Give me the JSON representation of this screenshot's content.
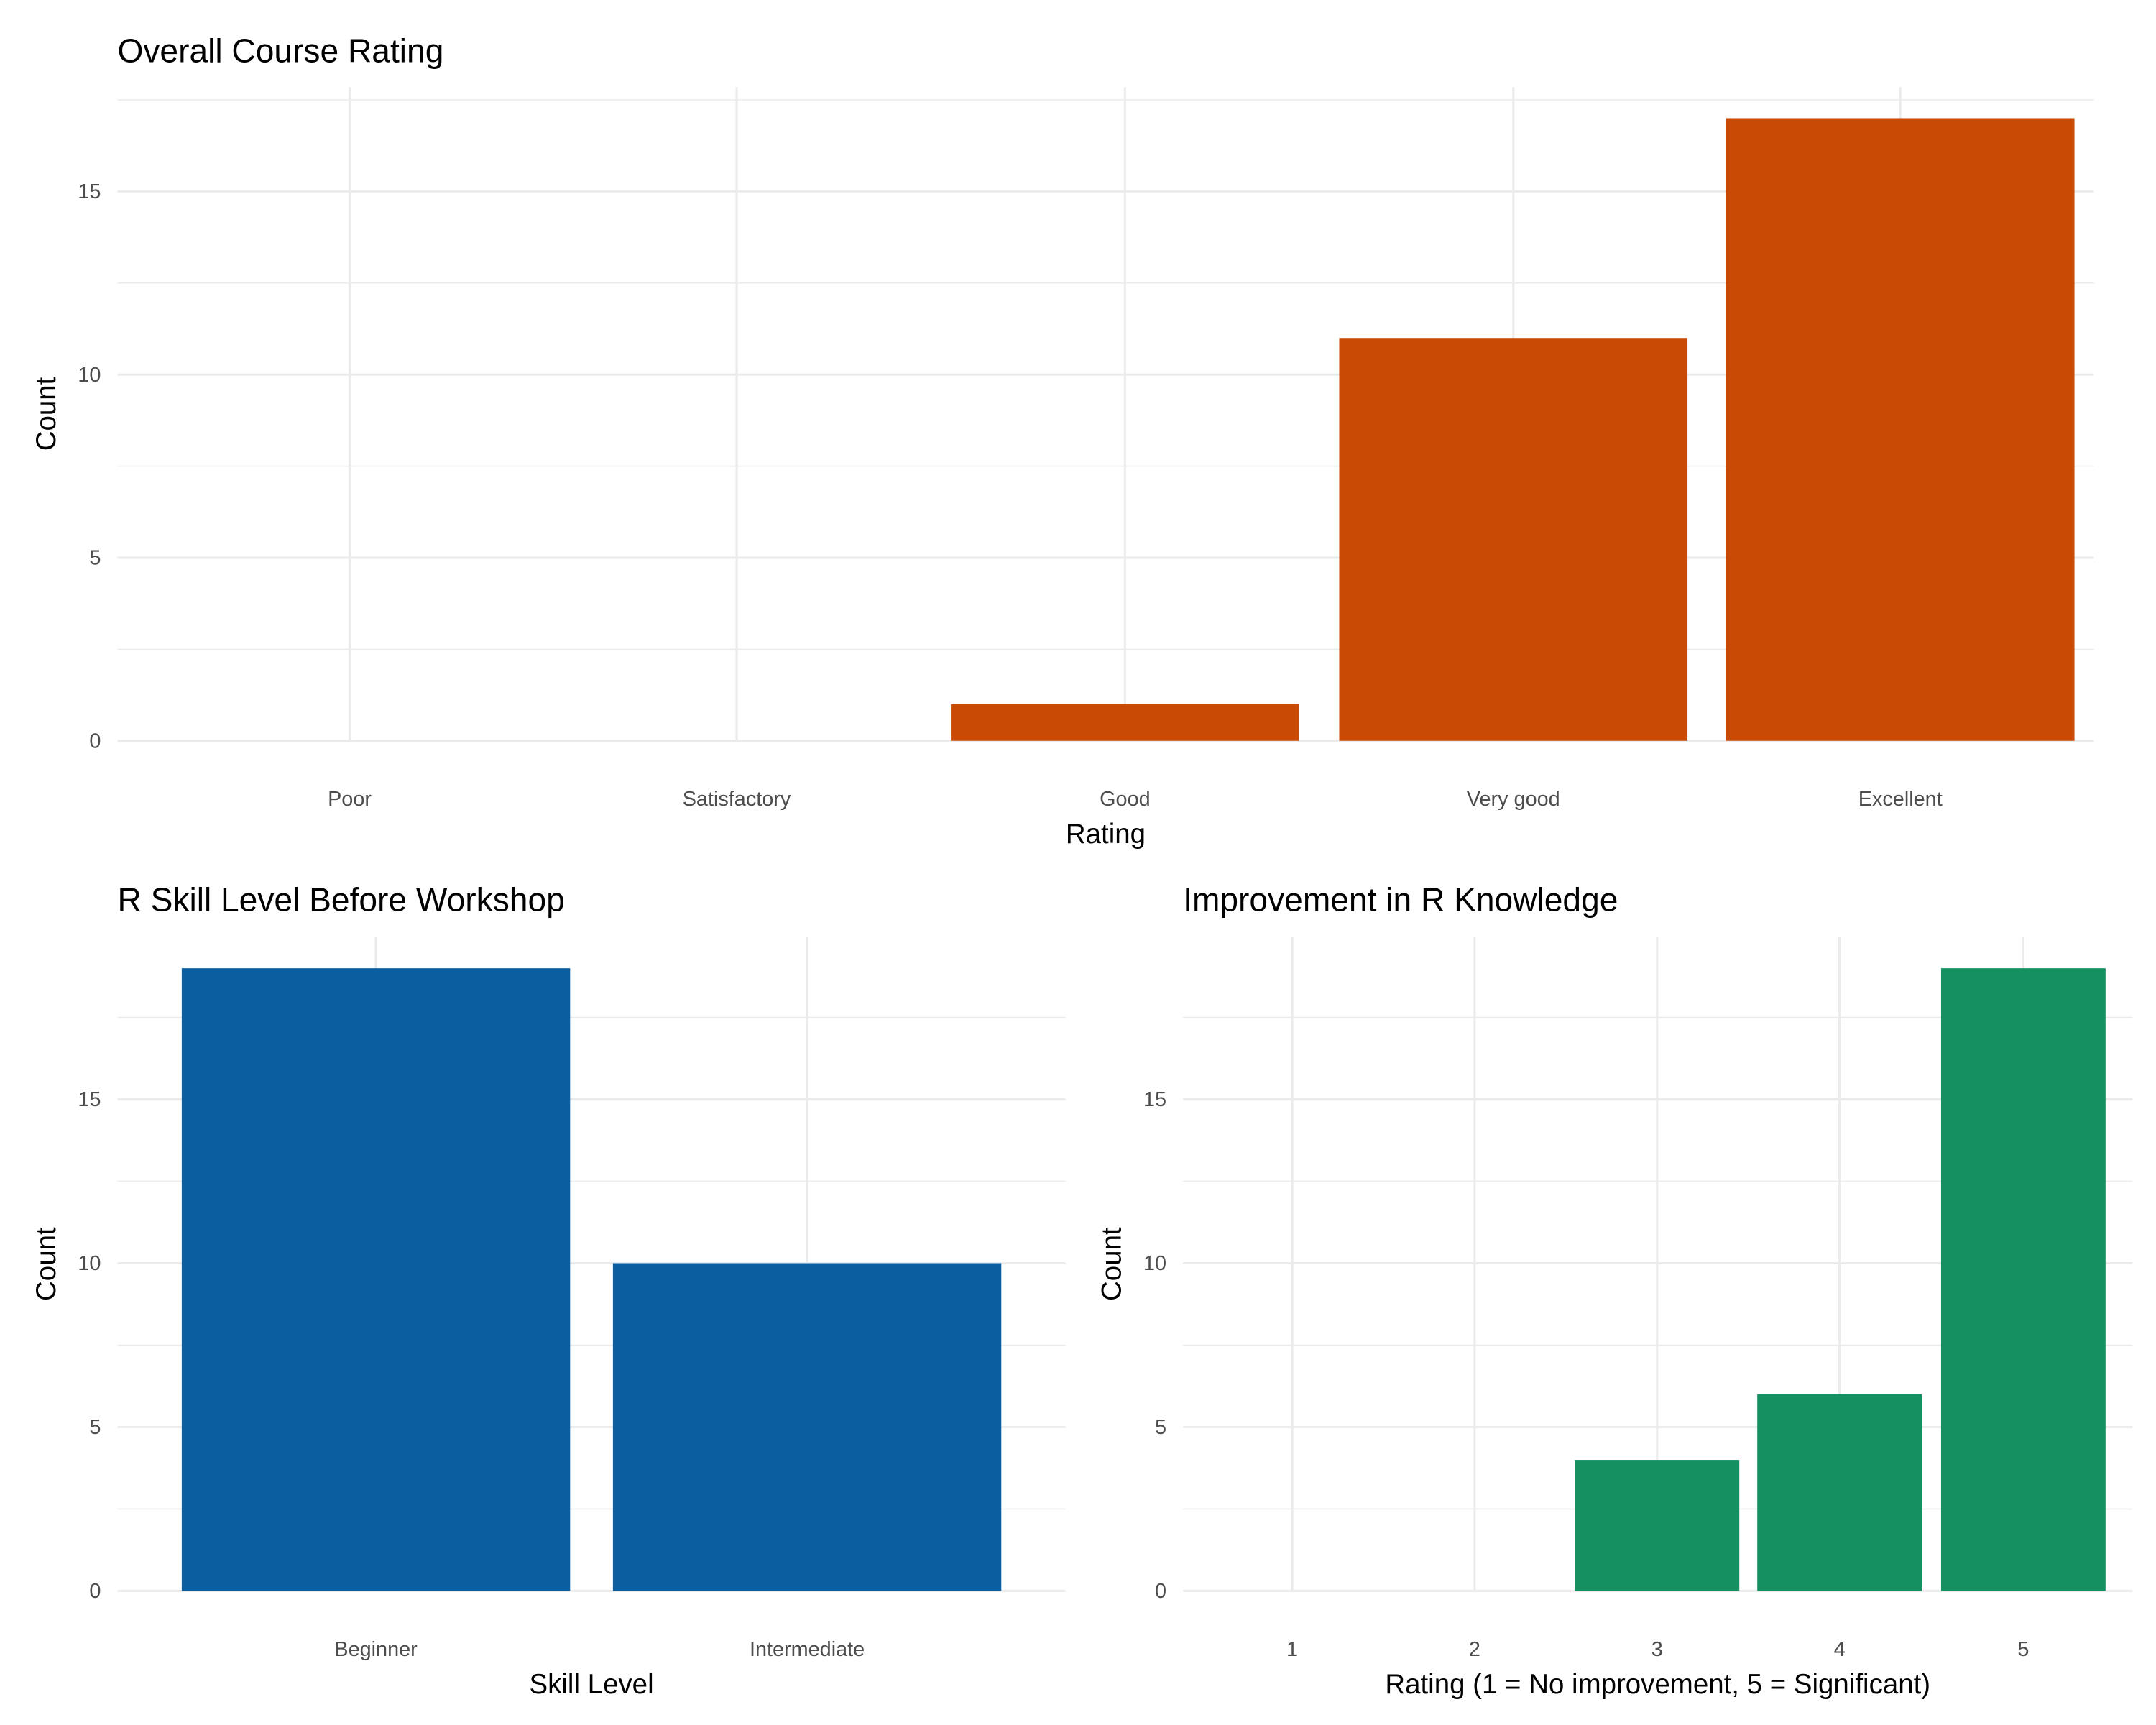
{
  "chart_data": [
    {
      "type": "bar",
      "title": "Overall Course Rating",
      "xlabel": "Rating",
      "ylabel": "Count",
      "categories": [
        "Poor",
        "Satisfactory",
        "Good",
        "Very good",
        "Excellent"
      ],
      "values": [
        0,
        0,
        1,
        11,
        17
      ],
      "yticks": [
        0,
        5,
        10,
        15
      ],
      "ylim": [
        0,
        17.85
      ],
      "color": "#C94A05",
      "grid": true
    },
    {
      "type": "bar",
      "title": "R Skill Level Before Workshop",
      "xlabel": "Skill Level",
      "ylabel": "Count",
      "categories": [
        "Beginner",
        "Intermediate"
      ],
      "values": [
        19,
        10
      ],
      "yticks": [
        0,
        5,
        10,
        15
      ],
      "ylim": [
        0,
        19.95
      ],
      "color": "#0B5EA0",
      "grid": true
    },
    {
      "type": "bar",
      "title": "Improvement in R Knowledge",
      "xlabel": "Rating (1 = No improvement, 5 = Significant)",
      "ylabel": "Count",
      "categories": [
        "1",
        "2",
        "3",
        "4",
        "5"
      ],
      "values": [
        0,
        0,
        4,
        6,
        19
      ],
      "yticks": [
        0,
        5,
        10,
        15
      ],
      "ylim": [
        0,
        19.95
      ],
      "color": "#159061",
      "grid": true
    }
  ]
}
